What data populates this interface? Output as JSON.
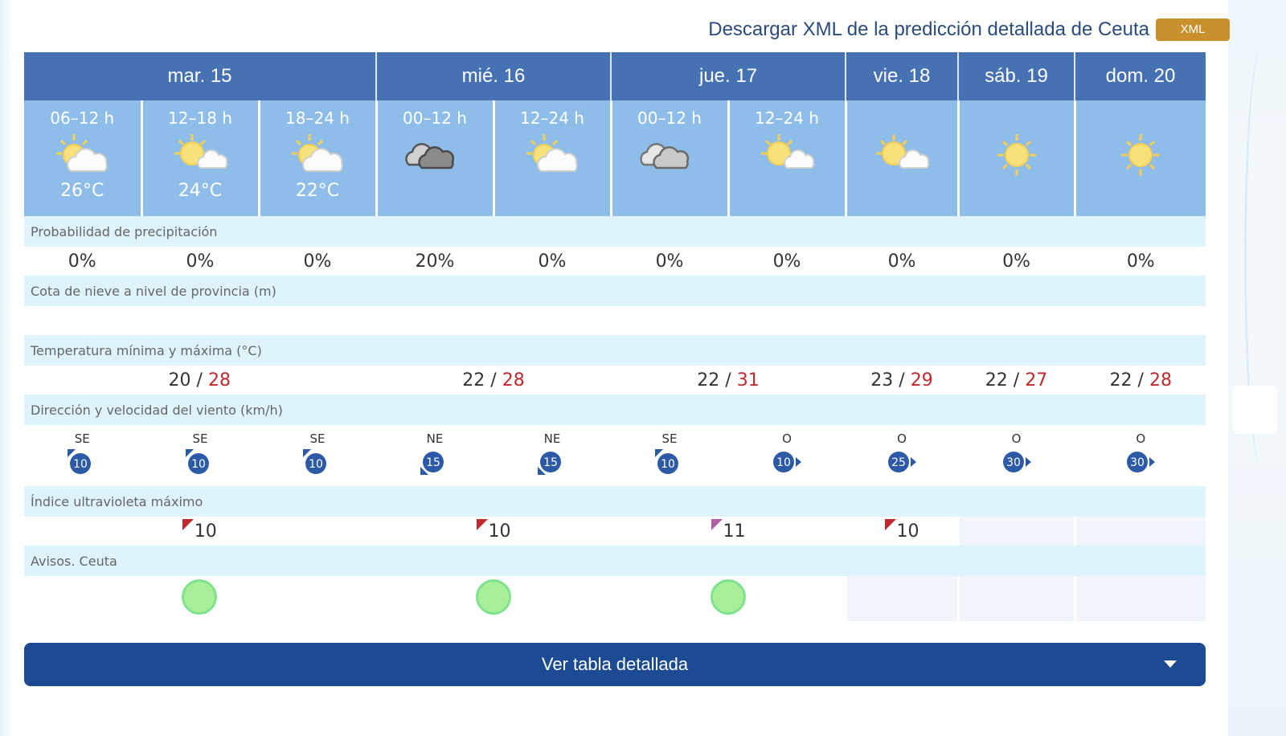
{
  "header": {
    "download_label": "Descargar XML de la predicción detallada de Ceuta",
    "xml_badge": "XML"
  },
  "days": [
    {
      "label": "mar. 15",
      "span": 3
    },
    {
      "label": "mié. 16",
      "span": 2
    },
    {
      "label": "jue. 17",
      "span": 2
    },
    {
      "label": "vie. 18",
      "span": 1
    },
    {
      "label": "sáb. 19",
      "span": 1
    },
    {
      "label": "dom. 20",
      "span": 1
    }
  ],
  "periods": [
    {
      "time": "06–12 h",
      "icon": "sun-cloud-icon",
      "temp": "26°C"
    },
    {
      "time": "12–18 h",
      "icon": "sun-cloud-icon",
      "temp": "24°C"
    },
    {
      "time": "18–24 h",
      "icon": "sun-cloud-icon",
      "temp": "22°C"
    },
    {
      "time": "00–12 h",
      "icon": "dark-cloud-icon",
      "temp": ""
    },
    {
      "time": "12–24 h",
      "icon": "sun-cloud-icon",
      "temp": ""
    },
    {
      "time": "00–12 h",
      "icon": "cloud-icon",
      "temp": ""
    },
    {
      "time": "12–24 h",
      "icon": "sun-cloud-icon",
      "temp": ""
    },
    {
      "time": "",
      "icon": "sun-cloud-icon",
      "temp": ""
    },
    {
      "time": "",
      "icon": "sun-icon",
      "temp": ""
    },
    {
      "time": "",
      "icon": "sun-icon",
      "temp": ""
    }
  ],
  "labels": {
    "precip": "Probabilidad de precipitación",
    "snow": "Cota de nieve a nivel de provincia (m)",
    "temp": "Temperatura mínima y máxima (°C)",
    "wind": "Dirección y velocidad del viento (km/h)",
    "uv": "Índice ultravioleta máximo",
    "avisos": "Avisos. Ceuta"
  },
  "precip": [
    "0%",
    "0%",
    "0%",
    "20%",
    "0%",
    "0%",
    "0%",
    "0%",
    "0%",
    "0%"
  ],
  "temps": [
    {
      "min": "20",
      "sep": "/",
      "max": "28"
    },
    {
      "min": "22",
      "sep": "/",
      "max": "28"
    },
    {
      "min": "22",
      "sep": "/",
      "max": "31"
    },
    {
      "min": "23",
      "sep": "/",
      "max": "29"
    },
    {
      "min": "22",
      "sep": "/",
      "max": "27"
    },
    {
      "min": "22",
      "sep": "/",
      "max": "28"
    }
  ],
  "wind": [
    {
      "dir": "SE",
      "speed": "10"
    },
    {
      "dir": "SE",
      "speed": "10"
    },
    {
      "dir": "SE",
      "speed": "10"
    },
    {
      "dir": "NE",
      "speed": "15"
    },
    {
      "dir": "NE",
      "speed": "15"
    },
    {
      "dir": "SE",
      "speed": "10"
    },
    {
      "dir": "O",
      "speed": "10"
    },
    {
      "dir": "O",
      "speed": "25"
    },
    {
      "dir": "O",
      "speed": "30"
    },
    {
      "dir": "O",
      "speed": "30"
    }
  ],
  "uv": [
    "10",
    "10",
    "11",
    "10"
  ],
  "colors": {
    "header_blue": "#4672b4",
    "period_blue": "#8fbdea",
    "label_bg": "#def3fb",
    "max_temp_red": "#c0282d",
    "aviso_green": "#a8ef9a",
    "button_blue": "#1c4b94",
    "xml_badge": "#c8902d"
  },
  "footer": {
    "detail_button": "Ver tabla detallada"
  }
}
